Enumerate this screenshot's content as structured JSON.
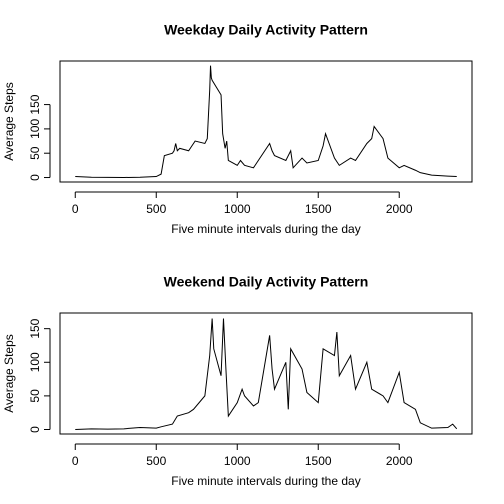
{
  "chart_data": [
    {
      "type": "line",
      "title": "Weekday Daily Activity Pattern",
      "x_label": "Five minute intervals during the day",
      "y_label": "Average Steps",
      "color": "#000000",
      "xlim": [
        -94.2,
        2449.2
      ],
      "xticks": [
        0,
        500,
        1000,
        1500,
        2000
      ],
      "ylim": [
        -9.2,
        239.6
      ],
      "yticks": [
        0,
        50,
        100,
        150
      ],
      "x": [
        0,
        100,
        200,
        300,
        400,
        500,
        530,
        550,
        600,
        610,
        620,
        630,
        645,
        700,
        720,
        740,
        800,
        815,
        830,
        835,
        840,
        845,
        900,
        910,
        925,
        935,
        945,
        1000,
        1020,
        1045,
        1100,
        1130,
        1200,
        1215,
        1230,
        1300,
        1330,
        1345,
        1400,
        1430,
        1500,
        1530,
        1545,
        1600,
        1630,
        1700,
        1730,
        1800,
        1830,
        1845,
        1900,
        1930,
        2000,
        2030,
        2100,
        2130,
        2200,
        2300,
        2355
      ],
      "series": [
        {
          "name": "Average Steps",
          "color": "#000000",
          "values": [
            2,
            0.5,
            0.2,
            0.1,
            0.5,
            2,
            7,
            45,
            50,
            55,
            70,
            55,
            60,
            55,
            65,
            75,
            70,
            80,
            180,
            230,
            205,
            200,
            170,
            90,
            60,
            75,
            35,
            25,
            35,
            25,
            20,
            35,
            70,
            55,
            45,
            35,
            55,
            20,
            40,
            30,
            35,
            65,
            90,
            40,
            25,
            40,
            35,
            70,
            80,
            105,
            80,
            40,
            20,
            25,
            15,
            10,
            5,
            3,
            2
          ]
        }
      ]
    },
    {
      "type": "line",
      "title": "Weekend Daily Activity Pattern",
      "x_label": "Five minute intervals during the day",
      "y_label": "Average Steps",
      "color": "#000000",
      "xlim": [
        -94.2,
        2449.2
      ],
      "xticks": [
        0,
        500,
        1000,
        1500,
        2000
      ],
      "ylim": [
        -6.7,
        173.3
      ],
      "yticks": [
        0,
        50,
        100,
        150
      ],
      "x": [
        0,
        100,
        200,
        300,
        400,
        500,
        530,
        600,
        630,
        700,
        730,
        800,
        830,
        845,
        855,
        900,
        915,
        930,
        945,
        1000,
        1030,
        1045,
        1100,
        1130,
        1200,
        1215,
        1230,
        1300,
        1315,
        1330,
        1400,
        1430,
        1500,
        1530,
        1600,
        1615,
        1630,
        1700,
        1730,
        1800,
        1830,
        1900,
        1930,
        2000,
        2030,
        2100,
        2130,
        2200,
        2300,
        2330,
        2355
      ],
      "series": [
        {
          "name": "Average Steps",
          "color": "#000000",
          "values": [
            0,
            1,
            0.5,
            1,
            3,
            2,
            4,
            8,
            20,
            25,
            30,
            50,
            110,
            165,
            120,
            80,
            165,
            90,
            20,
            40,
            60,
            50,
            35,
            40,
            140,
            90,
            60,
            100,
            30,
            120,
            90,
            55,
            40,
            120,
            110,
            145,
            80,
            110,
            60,
            100,
            60,
            50,
            40,
            85,
            40,
            30,
            10,
            2,
            3,
            8,
            1
          ]
        }
      ]
    }
  ]
}
